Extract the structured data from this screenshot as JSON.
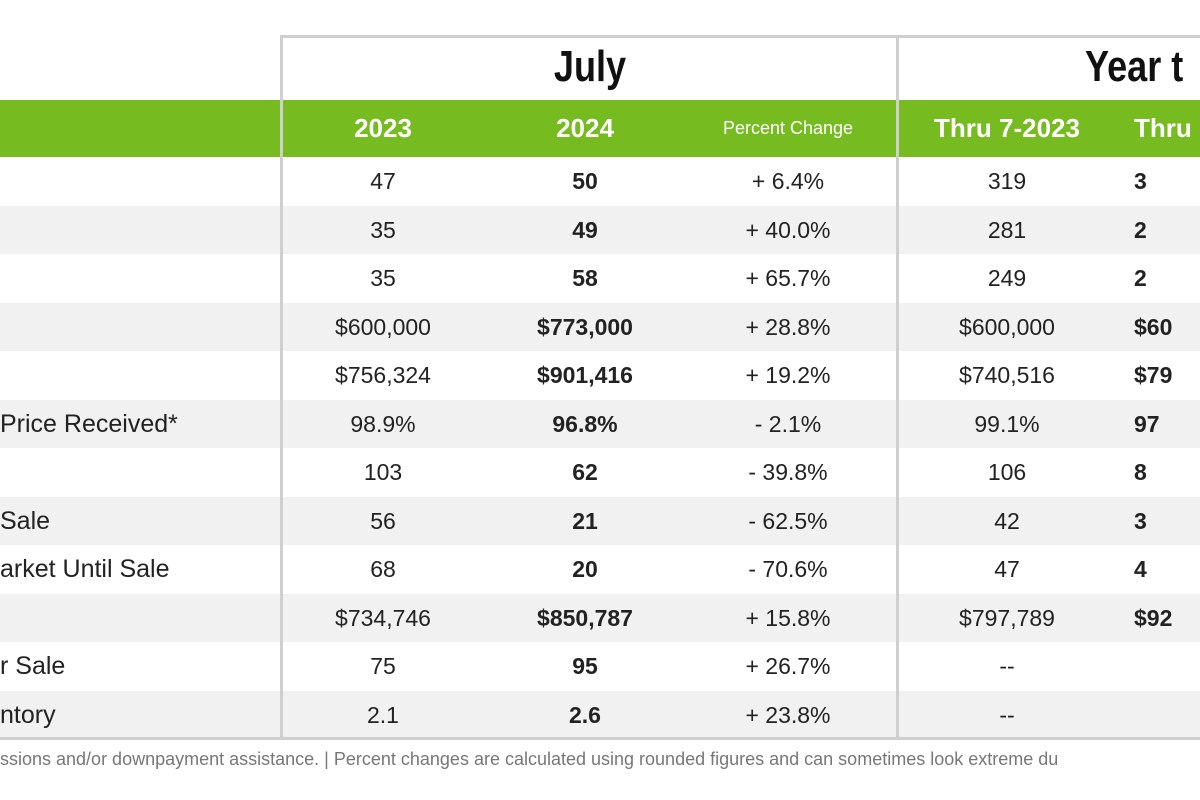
{
  "titles": {
    "july": "July",
    "ytd": "Year t"
  },
  "header": {
    "c2023": "2023",
    "c2024": "2024",
    "pct": "Percent Change",
    "ytd2023": "Thru 7-2023",
    "ytd2024": "Thru"
  },
  "colors": {
    "header_green": "#76bc21",
    "stripe": "#f1f1f1",
    "border": "#cfcfcf"
  },
  "rows": [
    {
      "label": "",
      "v2023": "47",
      "v2024": "50",
      "pct": "+ 6.4%",
      "ytd2023": "319",
      "ytd2024": "3"
    },
    {
      "label": "",
      "v2023": "35",
      "v2024": "49",
      "pct": "+ 40.0%",
      "ytd2023": "281",
      "ytd2024": "2"
    },
    {
      "label": "",
      "v2023": "35",
      "v2024": "58",
      "pct": "+ 65.7%",
      "ytd2023": "249",
      "ytd2024": "2"
    },
    {
      "label": "",
      "v2023": "$600,000",
      "v2024": "$773,000",
      "pct": "+ 28.8%",
      "ytd2023": "$600,000",
      "ytd2024": "$60"
    },
    {
      "label": "",
      "v2023": "$756,324",
      "v2024": "$901,416",
      "pct": "+ 19.2%",
      "ytd2023": "$740,516",
      "ytd2024": "$79"
    },
    {
      "label": "Price Received*",
      "v2023": "98.9%",
      "v2024": "96.8%",
      "pct": "- 2.1%",
      "ytd2023": "99.1%",
      "ytd2024": "97"
    },
    {
      "label": "",
      "v2023": "103",
      "v2024": "62",
      "pct": "- 39.8%",
      "ytd2023": "106",
      "ytd2024": "8"
    },
    {
      "label": "Sale",
      "v2023": "56",
      "v2024": "21",
      "pct": "- 62.5%",
      "ytd2023": "42",
      "ytd2024": "3"
    },
    {
      "label": "arket Until Sale",
      "v2023": "68",
      "v2024": "20",
      "pct": "- 70.6%",
      "ytd2023": "47",
      "ytd2024": "4"
    },
    {
      "label": "",
      "v2023": "$734,746",
      "v2024": "$850,787",
      "pct": "+ 15.8%",
      "ytd2023": "$797,789",
      "ytd2024": "$92"
    },
    {
      "label": "r Sale",
      "v2023": "75",
      "v2024": "95",
      "pct": "+ 26.7%",
      "ytd2023": "--",
      "ytd2024": ""
    },
    {
      "label": "ntory",
      "v2023": "2.1",
      "v2024": "2.6",
      "pct": "+ 23.8%",
      "ytd2023": "--",
      "ytd2024": ""
    }
  ],
  "footnote": "ssions and/or downpayment assistance.  |  Percent changes are calculated using rounded figures and can sometimes look extreme du"
}
